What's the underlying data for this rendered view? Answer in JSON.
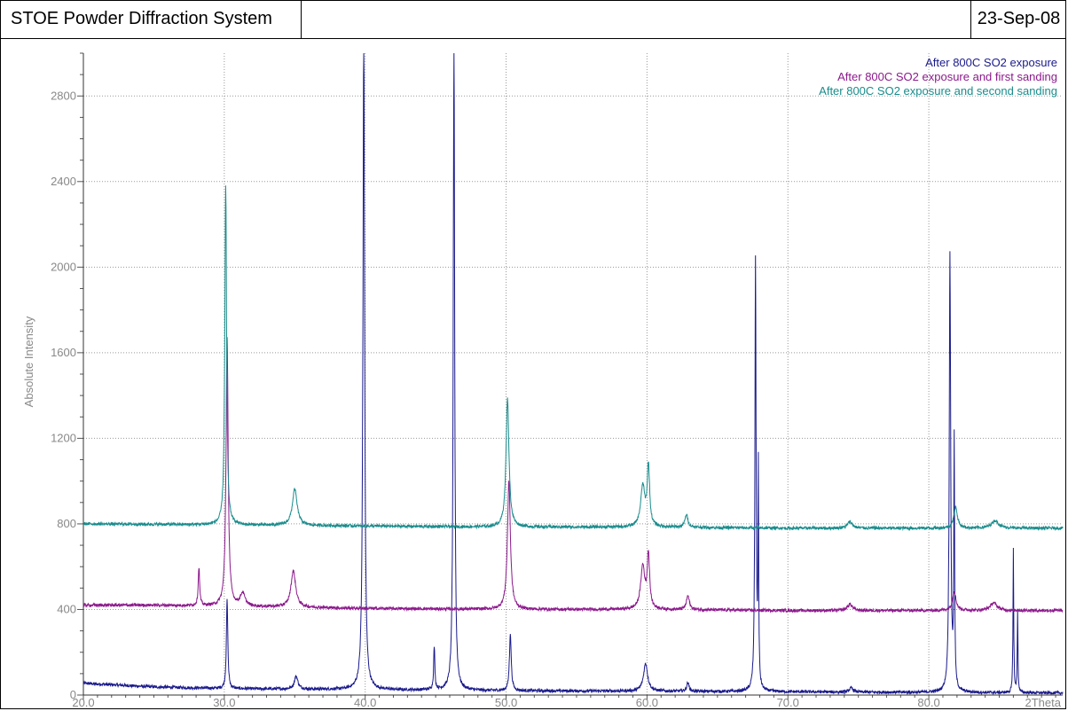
{
  "header": {
    "title": "STOE Powder Diffraction System",
    "date": "23-Sep-08"
  },
  "chart_data": {
    "type": "line",
    "title": "",
    "xlabel": "2Theta",
    "ylabel": "Absolute Intensity",
    "xlim": [
      20.0,
      89.5
    ],
    "ylim": [
      0,
      3000
    ],
    "x_ticks": [
      "20.0",
      "30.0",
      "40.0",
      "50.0",
      "60.0",
      "70.0",
      "80.0"
    ],
    "y_ticks": [
      "0",
      "400",
      "800",
      "1200",
      "1600",
      "2000",
      "2400",
      "2800"
    ],
    "grid": true,
    "legend_position": "top-right",
    "series": [
      {
        "name": "After 800C SO2 exposure",
        "color": "#1a1a8c",
        "baseline": [
          [
            20,
            55
          ],
          [
            25,
            38
          ],
          [
            30,
            30
          ],
          [
            40,
            25
          ],
          [
            50,
            20
          ],
          [
            60,
            18
          ],
          [
            70,
            15
          ],
          [
            80,
            12
          ],
          [
            89.5,
            10
          ]
        ],
        "peaks": [
          [
            30.2,
            420,
            0.12
          ],
          [
            35.1,
            60,
            0.3
          ],
          [
            39.9,
            3100,
            0.14
          ],
          [
            44.9,
            200,
            0.1
          ],
          [
            46.3,
            3050,
            0.12
          ],
          [
            50.3,
            270,
            0.15
          ],
          [
            59.9,
            130,
            0.35
          ],
          [
            62.9,
            40,
            0.2
          ],
          [
            67.7,
            2010,
            0.1
          ],
          [
            67.9,
            1000,
            0.06
          ],
          [
            74.5,
            20,
            0.3
          ],
          [
            81.5,
            2040,
            0.12
          ],
          [
            81.8,
            1150,
            0.07
          ],
          [
            86.0,
            680,
            0.06
          ],
          [
            86.3,
            380,
            0.06
          ]
        ]
      },
      {
        "name": "After 800C SO2 exposure and first sanding",
        "color": "#8c1a8c",
        "baseline": [
          [
            20,
            420
          ],
          [
            25,
            420
          ],
          [
            30,
            415
          ],
          [
            40,
            405
          ],
          [
            50,
            400
          ],
          [
            60,
            400
          ],
          [
            70,
            395
          ],
          [
            80,
            395
          ],
          [
            89.5,
            395
          ]
        ],
        "peaks": [
          [
            28.2,
            180,
            0.12
          ],
          [
            30.2,
            1250,
            0.18
          ],
          [
            31.3,
            60,
            0.4
          ],
          [
            34.9,
            170,
            0.4
          ],
          [
            50.2,
            600,
            0.25
          ],
          [
            59.7,
            200,
            0.35
          ],
          [
            60.1,
            250,
            0.2
          ],
          [
            62.9,
            65,
            0.25
          ],
          [
            74.4,
            30,
            0.4
          ],
          [
            81.8,
            90,
            0.3
          ],
          [
            84.6,
            35,
            0.6
          ]
        ]
      },
      {
        "name": "After 800C SO2 exposure and second sanding",
        "color": "#1a8c8c",
        "baseline": [
          [
            20,
            800
          ],
          [
            25,
            798
          ],
          [
            30,
            795
          ],
          [
            40,
            790
          ],
          [
            50,
            785
          ],
          [
            60,
            785
          ],
          [
            70,
            780
          ],
          [
            80,
            780
          ],
          [
            89.5,
            780
          ]
        ],
        "peaks": [
          [
            30.1,
            1580,
            0.15
          ],
          [
            35.0,
            170,
            0.4
          ],
          [
            50.1,
            600,
            0.25
          ],
          [
            59.7,
            190,
            0.35
          ],
          [
            60.1,
            280,
            0.2
          ],
          [
            62.8,
            60,
            0.25
          ],
          [
            74.4,
            30,
            0.4
          ],
          [
            81.9,
            100,
            0.3
          ],
          [
            84.7,
            35,
            0.6
          ]
        ]
      }
    ]
  }
}
